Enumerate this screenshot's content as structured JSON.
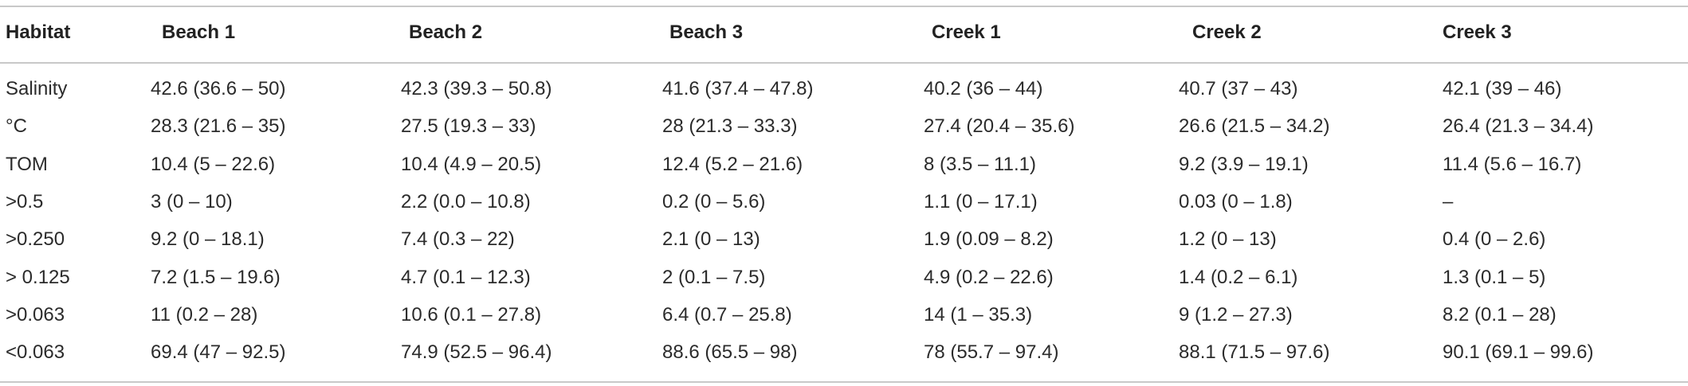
{
  "table": {
    "header": [
      "Habitat",
      "Beach 1",
      "Beach 2",
      "Beach 3",
      "Creek 1",
      "Creek 2",
      "Creek 3"
    ],
    "rows": [
      [
        "Salinity",
        "42.6 (36.6 – 50)",
        "42.3 (39.3 – 50.8)",
        "41.6 (37.4 – 47.8)",
        "40.2 (36 – 44)",
        "40.7 (37 – 43)",
        "42.1 (39 – 46)"
      ],
      [
        "°C",
        "28.3 (21.6 – 35)",
        "27.5 (19.3 – 33)",
        "28 (21.3 – 33.3)",
        "27.4 (20.4 – 35.6)",
        "26.6 (21.5 – 34.2)",
        "26.4 (21.3 – 34.4)"
      ],
      [
        "TOM",
        "10.4 (5 – 22.6)",
        "10.4 (4.9 – 20.5)",
        "12.4 (5.2 – 21.6)",
        "8 (3.5 – 11.1)",
        "9.2 (3.9 – 19.1)",
        "11.4 (5.6 – 16.7)"
      ],
      [
        ">0.5",
        "3 (0 – 10)",
        "2.2 (0.0 – 10.8)",
        "0.2 (0 – 5.6)",
        "1.1 (0 – 17.1)",
        "0.03 (0 – 1.8)",
        "–"
      ],
      [
        ">0.250",
        "9.2 (0 – 18.1)",
        "7.4 (0.3 – 22)",
        "2.1 (0 – 13)",
        "1.9 (0.09 – 8.2)",
        "1.2 (0 – 13)",
        "0.4 (0 – 2.6)"
      ],
      [
        "> 0.125",
        "7.2 (1.5 – 19.6)",
        "4.7 (0.1 – 12.3)",
        "2 (0.1 – 7.5)",
        "4.9 (0.2 – 22.6)",
        "1.4 (0.2 – 6.1)",
        "1.3 (0.1 – 5)"
      ],
      [
        ">0.063",
        "11 (0.2 – 28)",
        "10.6 (0.1 – 27.8)",
        "6.4 (0.7 – 25.8)",
        "14 (1 – 35.3)",
        "9 (1.2 – 27.3)",
        "8.2 (0.1 – 28)"
      ],
      [
        "<0.063",
        "69.4 (47 – 92.5)",
        "74.9 (52.5 – 96.4)",
        "88.6 (65.5 – 98)",
        "78 (55.7 – 97.4)",
        "88.1 (71.5 – 97.6)",
        "90.1 (69.1 – 99.6)"
      ]
    ]
  }
}
